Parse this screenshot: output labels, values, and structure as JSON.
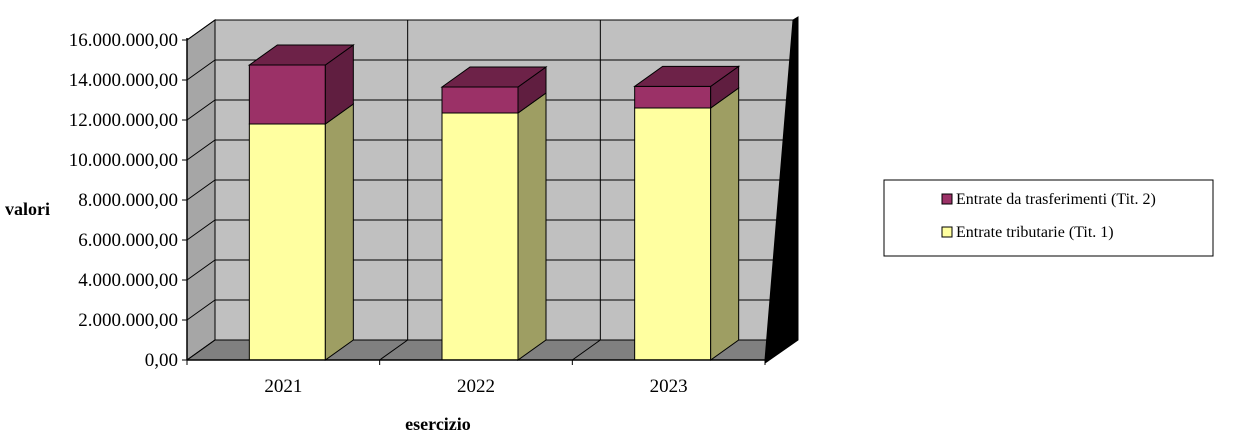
{
  "chart_data": {
    "type": "bar",
    "stacked": true,
    "style": "3d",
    "categories": [
      "2021",
      "2022",
      "2023"
    ],
    "series": [
      {
        "name": "Entrate tributarie (Tit. 1)",
        "values": [
          11800000,
          12350000,
          12600000
        ],
        "color": "#ffffa0"
      },
      {
        "name": "Entrate da trasferimenti (Tit. 2)",
        "values": [
          2950000,
          1300000,
          1080000
        ],
        "color": "#9b3167"
      }
    ],
    "xlabel": "esercizio",
    "ylabel": "valori",
    "ylim": [
      0,
      16000000
    ],
    "yticks": [
      0,
      2000000,
      4000000,
      6000000,
      8000000,
      10000000,
      12000000,
      14000000,
      16000000
    ],
    "ytick_labels": [
      "0,00",
      "2.000.000,00",
      "4.000.000,00",
      "6.000.000,00",
      "8.000.000,00",
      "10.000.000,00",
      "12.000.000,00",
      "14.000.000,00",
      "16.000.000,00"
    ],
    "grid": true,
    "legend_position": "right",
    "wall_color": "#c0c0c0",
    "floor_color": "#808080"
  }
}
